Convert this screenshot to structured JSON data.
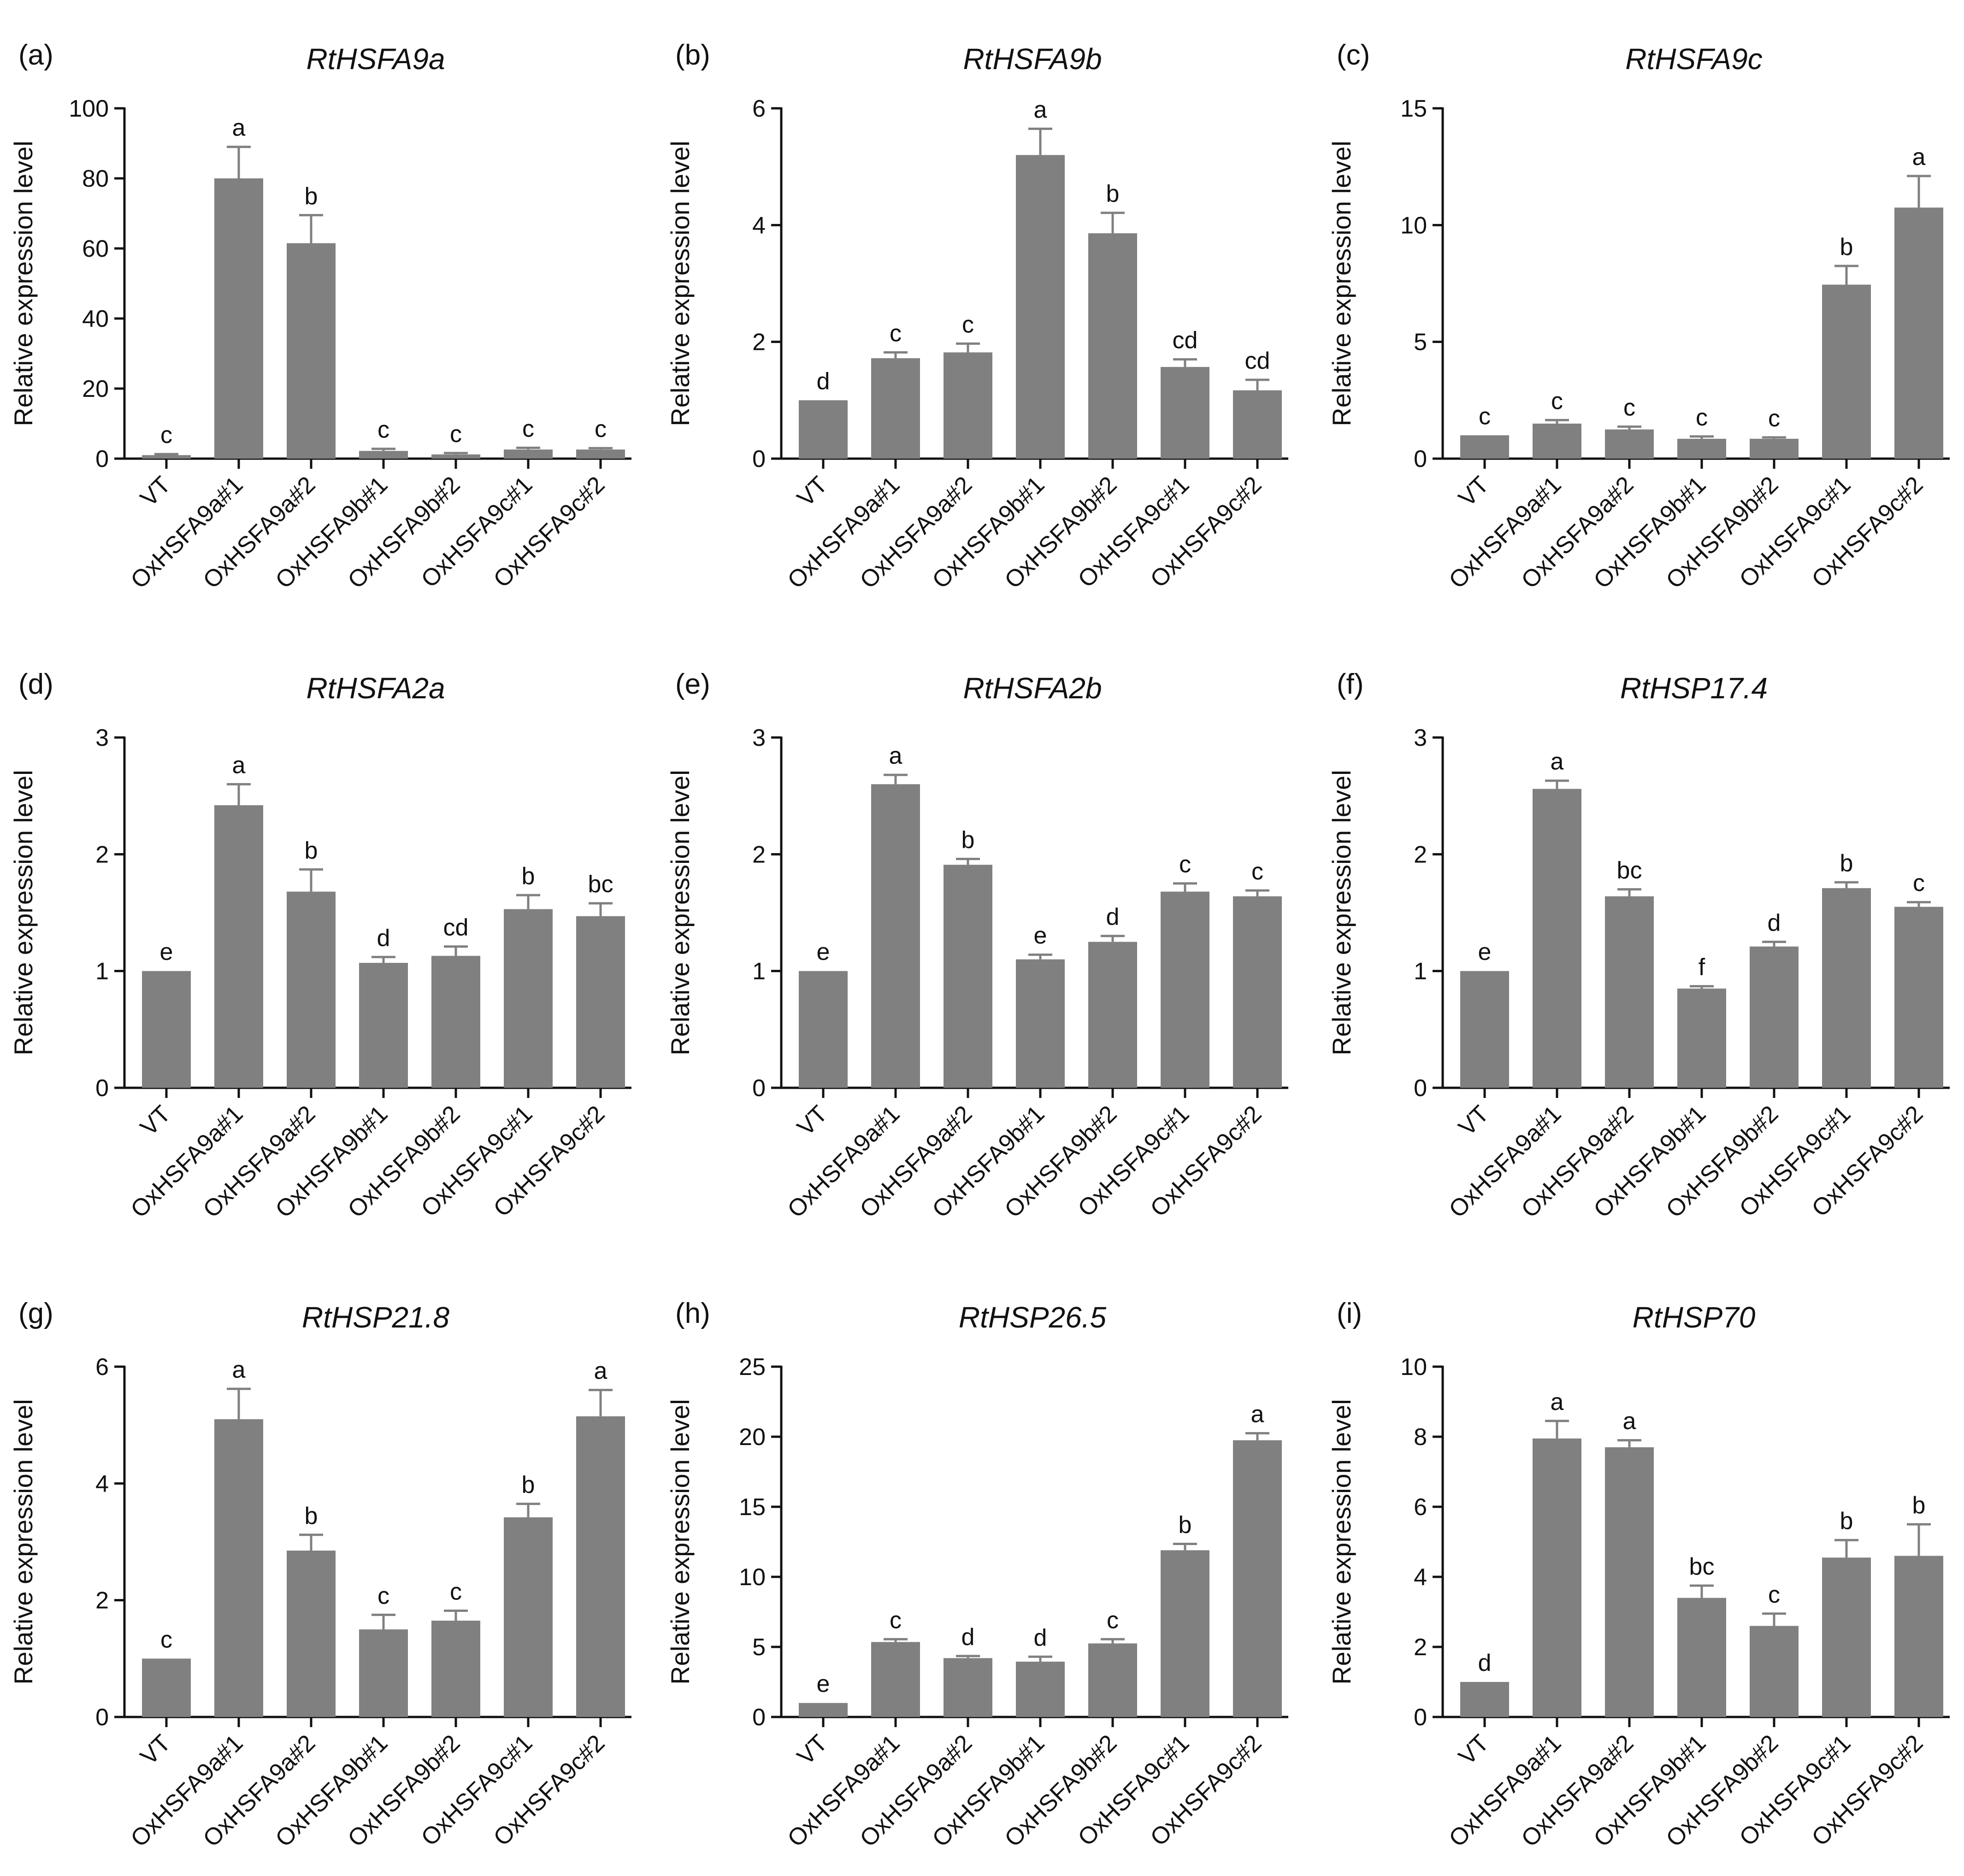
{
  "figure": {
    "ylabel": "Relative expression level",
    "bar_color": "#808080",
    "axis_color": "#111111"
  },
  "chart_data": [
    {
      "type": "bar",
      "panel": "(a)",
      "title": "RtHSFA9a",
      "xlabel": "",
      "ylabel": "Relative expression level",
      "categories": [
        "VT",
        "OxHSFA9a#1",
        "OxHSFA9a#2",
        "OxHSFA9b#1",
        "OxHSFA9b#2",
        "OxHSFA9c#1",
        "OxHSFA9c#2"
      ],
      "values": [
        1,
        80,
        61.5,
        2.2,
        1.2,
        2.6,
        2.6
      ],
      "errors": [
        0.3,
        9,
        8,
        0.6,
        0.4,
        0.5,
        0.4
      ],
      "significance": [
        "c",
        "a",
        "b",
        "c",
        "c",
        "c",
        "c"
      ],
      "ylim": [
        0,
        100
      ],
      "yticks": [
        0,
        20,
        40,
        60,
        80,
        100
      ]
    },
    {
      "type": "bar",
      "panel": "(b)",
      "title": "RtHSFA9b",
      "xlabel": "",
      "ylabel": "Relative expression level",
      "categories": [
        "VT",
        "OxHSFA9a#1",
        "OxHSFA9a#2",
        "OxHSFA9b#1",
        "OxHSFA9b#2",
        "OxHSFA9c#1",
        "OxHSFA9c#2"
      ],
      "values": [
        1,
        1.72,
        1.82,
        5.2,
        3.86,
        1.57,
        1.17
      ],
      "errors": [
        0,
        0.1,
        0.15,
        0.45,
        0.35,
        0.13,
        0.18
      ],
      "significance": [
        "d",
        "c",
        "c",
        "a",
        "b",
        "cd",
        "cd"
      ],
      "ylim": [
        0,
        6
      ],
      "yticks": [
        0,
        2,
        4,
        6
      ]
    },
    {
      "type": "bar",
      "panel": "(c)",
      "title": "RtHSFA9c",
      "xlabel": "",
      "ylabel": "Relative expression level",
      "categories": [
        "VT",
        "OxHSFA9a#1",
        "OxHSFA9a#2",
        "OxHSFA9b#1",
        "OxHSFA9b#2",
        "OxHSFA9c#1",
        "OxHSFA9c#2"
      ],
      "values": [
        1,
        1.5,
        1.25,
        0.85,
        0.85,
        7.45,
        10.75
      ],
      "errors": [
        0,
        0.15,
        0.12,
        0.1,
        0.06,
        0.8,
        1.35
      ],
      "significance": [
        "c",
        "c",
        "c",
        "c",
        "c",
        "b",
        "a"
      ],
      "ylim": [
        0,
        15
      ],
      "yticks": [
        0,
        5,
        10,
        15
      ]
    },
    {
      "type": "bar",
      "panel": "(d)",
      "title": "RtHSFA2a",
      "xlabel": "",
      "ylabel": "Relative expression level",
      "categories": [
        "VT",
        "OxHSFA9a#1",
        "OxHSFA9a#2",
        "OxHSFA9b#1",
        "OxHSFA9b#2",
        "OxHSFA9c#1",
        "OxHSFA9c#2"
      ],
      "values": [
        1,
        2.42,
        1.68,
        1.07,
        1.13,
        1.53,
        1.47
      ],
      "errors": [
        0,
        0.18,
        0.19,
        0.05,
        0.08,
        0.12,
        0.11
      ],
      "significance": [
        "e",
        "a",
        "b",
        "d",
        "cd",
        "b",
        "bc"
      ],
      "ylim": [
        0,
        3
      ],
      "yticks": [
        0,
        1,
        2,
        3
      ]
    },
    {
      "type": "bar",
      "panel": "(e)",
      "title": "RtHSFA2b",
      "xlabel": "",
      "ylabel": "Relative expression level",
      "categories": [
        "VT",
        "OxHSFA9a#1",
        "OxHSFA9a#2",
        "OxHSFA9b#1",
        "OxHSFA9b#2",
        "OxHSFA9c#1",
        "OxHSFA9c#2"
      ],
      "values": [
        1,
        2.6,
        1.91,
        1.1,
        1.25,
        1.68,
        1.64
      ],
      "errors": [
        0,
        0.08,
        0.05,
        0.04,
        0.05,
        0.07,
        0.05
      ],
      "significance": [
        "e",
        "a",
        "b",
        "e",
        "d",
        "c",
        "c"
      ],
      "ylim": [
        0,
        3
      ],
      "yticks": [
        0,
        1,
        2,
        3
      ]
    },
    {
      "type": "bar",
      "panel": "(f)",
      "title": "RtHSP17.4",
      "xlabel": "",
      "ylabel": "Relative expression level",
      "categories": [
        "VT",
        "OxHSFA9a#1",
        "OxHSFA9a#2",
        "OxHSFA9b#1",
        "OxHSFA9b#2",
        "OxHSFA9c#1",
        "OxHSFA9c#2"
      ],
      "values": [
        1,
        2.56,
        1.64,
        0.85,
        1.21,
        1.71,
        1.55
      ],
      "errors": [
        0,
        0.07,
        0.06,
        0.02,
        0.04,
        0.05,
        0.04
      ],
      "significance": [
        "e",
        "a",
        "bc",
        "f",
        "d",
        "b",
        "c"
      ],
      "ylim": [
        0,
        3
      ],
      "yticks": [
        0,
        1,
        2,
        3
      ]
    },
    {
      "type": "bar",
      "panel": "(g)",
      "title": "RtHSP21.8",
      "xlabel": "",
      "ylabel": "Relative expression level",
      "categories": [
        "VT",
        "OxHSFA9a#1",
        "OxHSFA9a#2",
        "OxHSFA9b#1",
        "OxHSFA9b#2",
        "OxHSFA9c#1",
        "OxHSFA9c#2"
      ],
      "values": [
        1,
        5.1,
        2.85,
        1.5,
        1.65,
        3.42,
        5.15
      ],
      "errors": [
        0,
        0.52,
        0.27,
        0.25,
        0.17,
        0.23,
        0.45
      ],
      "significance": [
        "c",
        "a",
        "b",
        "c",
        "c",
        "b",
        "a"
      ],
      "ylim": [
        0,
        6
      ],
      "yticks": [
        0,
        2,
        4,
        6
      ]
    },
    {
      "type": "bar",
      "panel": "(h)",
      "title": "RtHSP26.5",
      "xlabel": "",
      "ylabel": "Relative expression level",
      "categories": [
        "VT",
        "OxHSFA9a#1",
        "OxHSFA9a#2",
        "OxHSFA9b#1",
        "OxHSFA9b#2",
        "OxHSFA9c#1",
        "OxHSFA9c#2"
      ],
      "values": [
        1,
        5.35,
        4.2,
        3.95,
        5.25,
        11.9,
        19.75
      ],
      "errors": [
        0,
        0.2,
        0.15,
        0.35,
        0.3,
        0.45,
        0.5
      ],
      "significance": [
        "e",
        "c",
        "d",
        "d",
        "c",
        "b",
        "a"
      ],
      "ylim": [
        0,
        25
      ],
      "yticks": [
        0,
        5,
        10,
        15,
        20,
        25
      ]
    },
    {
      "type": "bar",
      "panel": "(i)",
      "title": "RtHSP70",
      "xlabel": "",
      "ylabel": "Relative expression level",
      "categories": [
        "VT",
        "OxHSFA9a#1",
        "OxHSFA9a#2",
        "OxHSFA9b#1",
        "OxHSFA9b#2",
        "OxHSFA9c#1",
        "OxHSFA9c#2"
      ],
      "values": [
        1,
        7.95,
        7.7,
        3.4,
        2.6,
        4.55,
        4.6
      ],
      "errors": [
        0,
        0.5,
        0.2,
        0.35,
        0.35,
        0.5,
        0.9
      ],
      "significance": [
        "d",
        "a",
        "a",
        "bc",
        "c",
        "b",
        "b"
      ],
      "ylim": [
        0,
        10
      ],
      "yticks": [
        0,
        2,
        4,
        6,
        8,
        10
      ]
    }
  ]
}
